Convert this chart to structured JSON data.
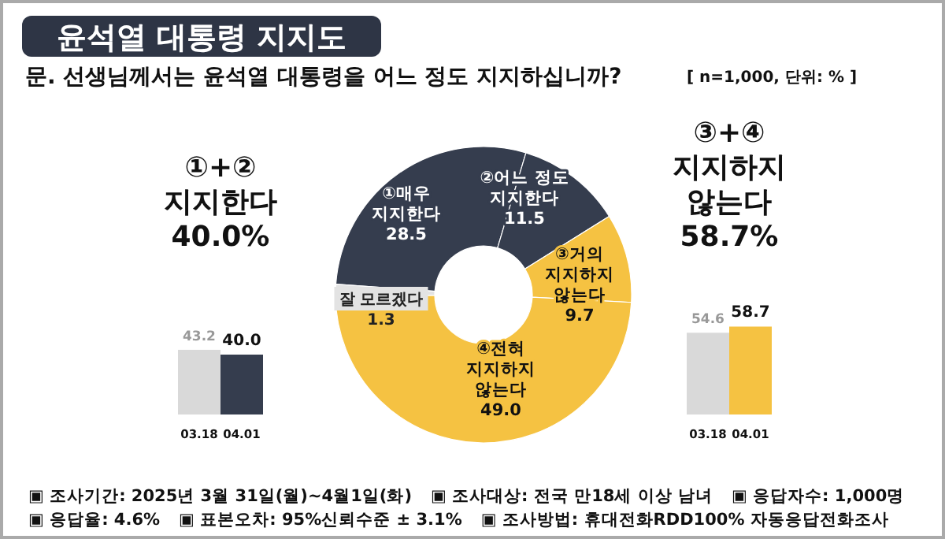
{
  "chart_data": [
    {
      "type": "donut",
      "title": "윤석열 대통령 지지도",
      "subtitle": "문. 선생님께서는 윤석열 대통령을 어느 정도 지지하십니까?",
      "categories": [
        "①매우\n지지한다",
        "②어느 정도\n지지한다",
        "③거의\n지지하지\n않는다",
        "④전혀\n지지하지\n않는다",
        "잘 모르겠다"
      ],
      "values": [
        28.5,
        11.5,
        9.7,
        49.0,
        1.3
      ],
      "colors": [
        "#353d4e",
        "#353d4e",
        "#f5c242",
        "#f5c242",
        "#e3e3e3"
      ],
      "value_labels": [
        "28.5",
        "11.5",
        "9.7",
        "49.0",
        "1.3"
      ],
      "annotations": [
        "[ n=1,000, 단위: % ]",
        "▣ 조사기간: 2025년 3월 31일(월)~4월1일(화)",
        "▣ 조사대상: 전국 만18세 이상 남녀",
        "▣ 응답자수: 1,000명",
        "▣ 응답율: 4.6%",
        "▣ 표본오차: 95%신뢰수준 ± 3.1%",
        "▣ 조사방법: 휴대전화RDD100% 자동응답전화조사"
      ]
    },
    {
      "type": "bar",
      "title": "①+②\n지지한다\n40.0%",
      "categories": [
        "03.18",
        "04.01"
      ],
      "values": [
        43.2,
        40.0
      ],
      "colors": [
        "#d9d9d9",
        "#353d4e"
      ],
      "value_labels": [
        "43.2",
        "40.0"
      ]
    },
    {
      "type": "bar",
      "title": "③+④\n지지하지\n않는다\n58.7%",
      "categories": [
        "03.18",
        "04.01"
      ],
      "values": [
        54.6,
        58.7
      ],
      "colors": [
        "#d9d9d9",
        "#f5c242"
      ],
      "value_labels": [
        "54.6",
        "58.7"
      ]
    }
  ]
}
